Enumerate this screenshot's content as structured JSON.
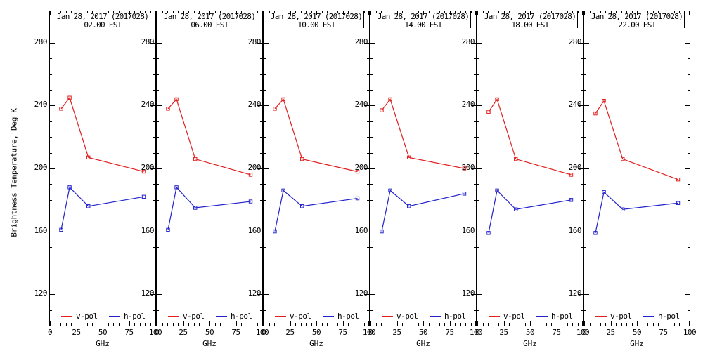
{
  "chart_data": {
    "type": "line",
    "title": "",
    "xlabel": "GHz",
    "ylabel": "Brightness Temperature, Deg K",
    "x": [
      10.65,
      18.7,
      36.5,
      89
    ],
    "xlim": [
      0,
      100
    ],
    "ylim": [
      100,
      300
    ],
    "x_ticks": [
      0,
      25,
      50,
      75,
      100
    ],
    "y_ticks": [
      120,
      160,
      200,
      240,
      280
    ],
    "grid": "off",
    "marker": "open-square",
    "legend_position": "bottom-inside",
    "colors": {
      "v_pol": "#e02020",
      "h_pol": "#2222cc",
      "axis": "#000000",
      "background": "#ffffff"
    },
    "panels": [
      {
        "title": "Jan 28, 2017 (2017028)",
        "subtitle": "02.00 EST",
        "series": [
          {
            "name": "v-pol",
            "color": "#e02020",
            "values": [
              238,
              245,
              207,
              198
            ]
          },
          {
            "name": "h-pol",
            "color": "#2222cc",
            "values": [
              161,
              188,
              176,
              182
            ]
          }
        ]
      },
      {
        "title": "Jan 28, 2017 (2017028)",
        "subtitle": "06.00 EST",
        "series": [
          {
            "name": "v-pol",
            "color": "#e02020",
            "values": [
              238,
              244,
              206,
              196
            ]
          },
          {
            "name": "h-pol",
            "color": "#2222cc",
            "values": [
              161,
              188,
              175,
              179
            ]
          }
        ]
      },
      {
        "title": "Jan 28, 2017 (2017028)",
        "subtitle": "10.00 EST",
        "series": [
          {
            "name": "v-pol",
            "color": "#e02020",
            "values": [
              238,
              244,
              206,
              198
            ]
          },
          {
            "name": "h-pol",
            "color": "#2222cc",
            "values": [
              160,
              186,
              176,
              181
            ]
          }
        ]
      },
      {
        "title": "Jan 28, 2017 (2017028)",
        "subtitle": "14.00 EST",
        "series": [
          {
            "name": "v-pol",
            "color": "#e02020",
            "values": [
              237,
              244,
              207,
              200
            ]
          },
          {
            "name": "h-pol",
            "color": "#2222cc",
            "values": [
              160,
              186,
              176,
              184
            ]
          }
        ]
      },
      {
        "title": "Jan 28, 2017 (2017028)",
        "subtitle": "18.00 EST",
        "series": [
          {
            "name": "v-pol",
            "color": "#e02020",
            "values": [
              236,
              244,
              206,
              196
            ]
          },
          {
            "name": "h-pol",
            "color": "#2222cc",
            "values": [
              159,
              186,
              174,
              180
            ]
          }
        ]
      },
      {
        "title": "Jan 28, 2017 (2017028)",
        "subtitle": "22.00 EST",
        "series": [
          {
            "name": "v-pol",
            "color": "#e02020",
            "values": [
              235,
              243,
              206,
              193
            ]
          },
          {
            "name": "h-pol",
            "color": "#2222cc",
            "values": [
              159,
              185,
              174,
              178
            ]
          }
        ]
      }
    ]
  }
}
